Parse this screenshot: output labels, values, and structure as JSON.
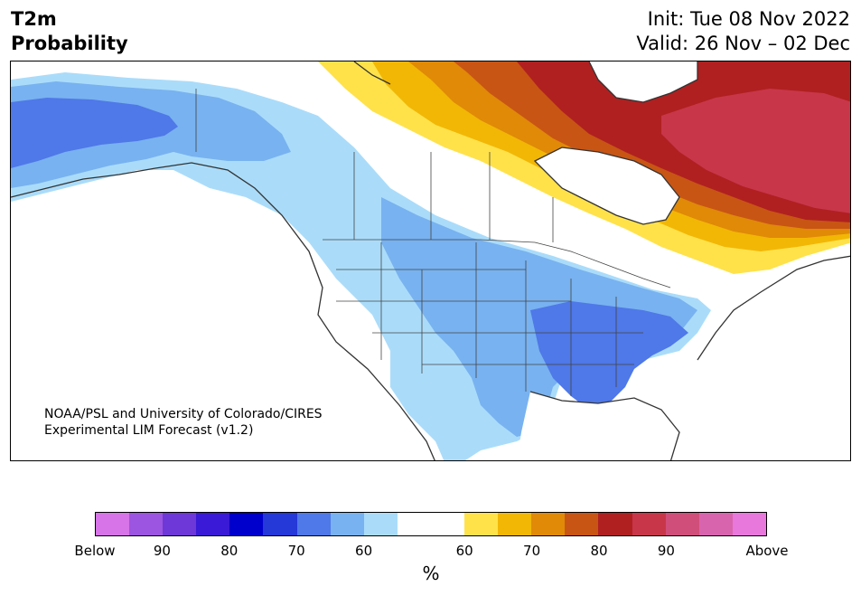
{
  "title": {
    "line1": "T2m",
    "line2": "Probability"
  },
  "dates": {
    "init": "Init: Tue 08 Nov 2022",
    "valid": "Valid: 26 Nov – 02 Dec"
  },
  "credit": {
    "line1": "NOAA/PSL and University of Colorado/CIRES",
    "line2": "Experimental LIM Forecast (v1.2)"
  },
  "colorbar": {
    "unit": "%",
    "colors": [
      "#d674e8",
      "#9b55e0",
      "#6e38d8",
      "#3a1ad6",
      "#0000cc",
      "#2538d8",
      "#4f78e8",
      "#78b2f0",
      "#aadcfa",
      "#ffffff",
      "#ffffff",
      "#ffe24a",
      "#f2b705",
      "#e08a08",
      "#c85514",
      "#b02020",
      "#c8364a",
      "#d04e7a",
      "#d964ae",
      "#e878dc"
    ],
    "ticks": [
      "Below",
      "90",
      "80",
      "70",
      "60",
      "60",
      "70",
      "80",
      "90",
      "Above"
    ]
  },
  "map_colors": {
    "land": "#ffffff",
    "below_light": "#aadcfa",
    "below_med": "#78b2f0",
    "below_dark": "#4f78e8",
    "above_yellow": "#ffe24a",
    "above_gold": "#f2b705",
    "above_orange": "#e08a08",
    "above_darkorange": "#c85514",
    "above_red": "#b02020",
    "above_crimson": "#c8364a",
    "coast": "#333333"
  }
}
